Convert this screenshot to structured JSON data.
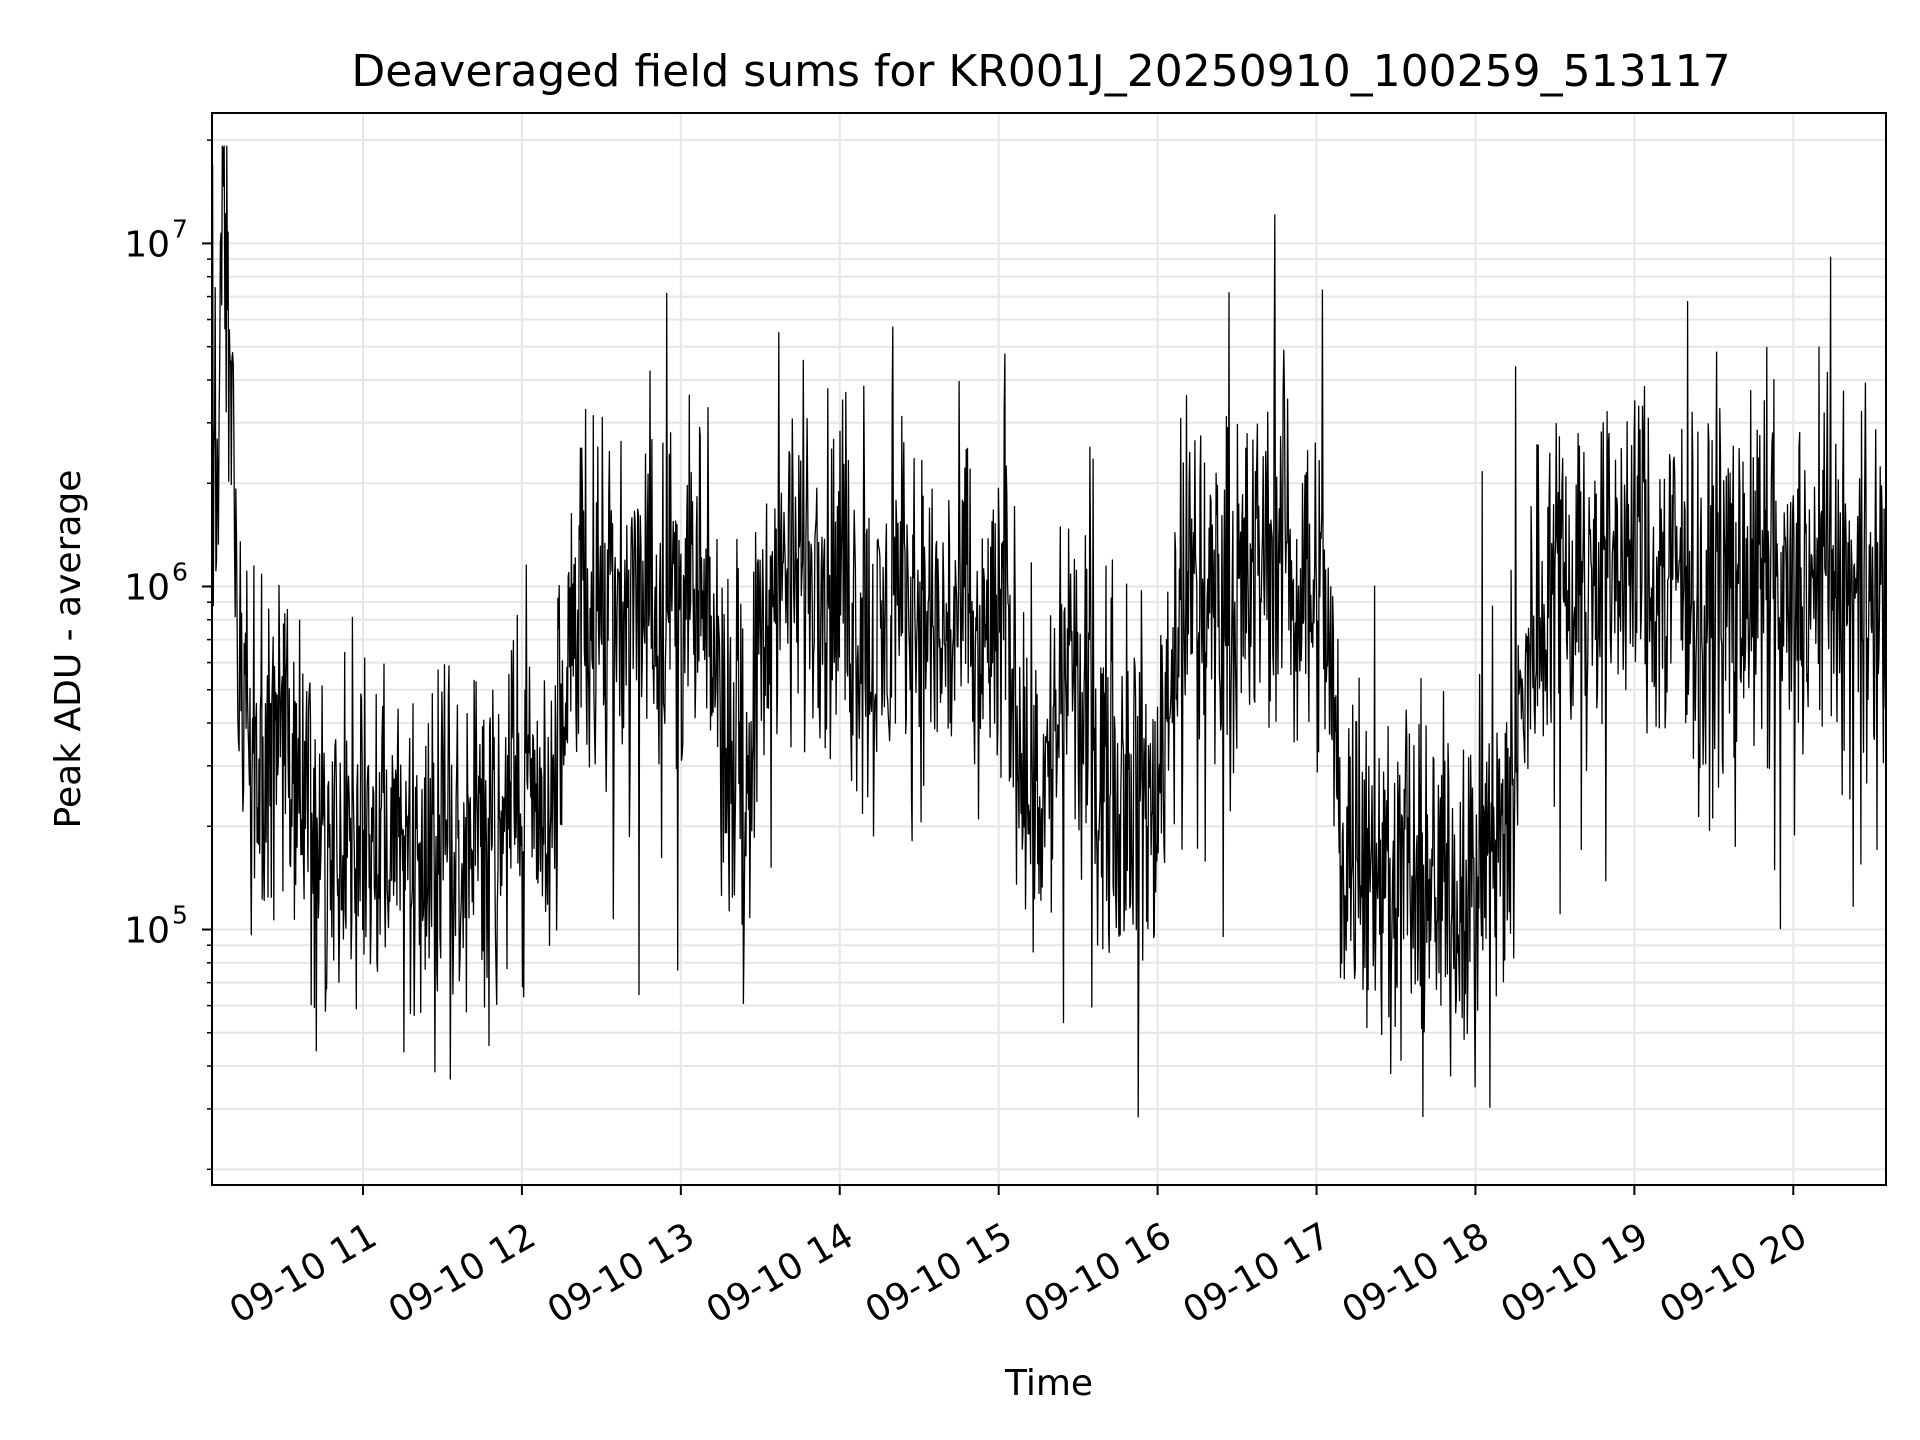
{
  "chart_data": {
    "type": "line",
    "title": "Deaveraged field sums for KR001J_20250910_100259_513117",
    "xlabel": "Time",
    "ylabel": "Peak ADU - average",
    "yscale": "log",
    "ylim": [
      18000,
      24000000
    ],
    "xlim": [
      "2025-09-10 10:03",
      "2025-09-10 20:35"
    ],
    "grid": true,
    "line_color": "#000000",
    "grid_color": "#e6e6e6",
    "x_ticks": [
      {
        "value": "2025-09-10 11:00",
        "label": "09-10 11"
      },
      {
        "value": "2025-09-10 12:00",
        "label": "09-10 12"
      },
      {
        "value": "2025-09-10 13:00",
        "label": "09-10 13"
      },
      {
        "value": "2025-09-10 14:00",
        "label": "09-10 14"
      },
      {
        "value": "2025-09-10 15:00",
        "label": "09-10 15"
      },
      {
        "value": "2025-09-10 16:00",
        "label": "09-10 16"
      },
      {
        "value": "2025-09-10 17:00",
        "label": "09-10 17"
      },
      {
        "value": "2025-09-10 18:00",
        "label": "09-10 18"
      },
      {
        "value": "2025-09-10 19:00",
        "label": "09-10 19"
      },
      {
        "value": "2025-09-10 20:00",
        "label": "09-10 20"
      }
    ],
    "y_ticks": [
      {
        "value": 100000,
        "base": "10",
        "exp": "5"
      },
      {
        "value": 1000000,
        "base": "10",
        "exp": "6"
      },
      {
        "value": 10000000,
        "base": "10",
        "exp": "7"
      }
    ],
    "series": [
      {
        "x": [
          "2025-09-10 10:03",
          "2025-09-10 10:07",
          "2025-09-10 10:14",
          "2025-09-10 10:22",
          "2025-09-10 10:30",
          "2025-09-10 10:38",
          "2025-09-10 10:46",
          "2025-09-10 10:54",
          "2025-09-10 11:02",
          "2025-09-10 11:10",
          "2025-09-10 11:18",
          "2025-09-10 11:26",
          "2025-09-10 11:34",
          "2025-09-10 11:42",
          "2025-09-10 11:50",
          "2025-09-10 11:58",
          "2025-09-10 12:06",
          "2025-09-10 12:14",
          "2025-09-10 12:22",
          "2025-09-10 12:30",
          "2025-09-10 12:38",
          "2025-09-10 12:46",
          "2025-09-10 12:54",
          "2025-09-10 13:02",
          "2025-09-10 13:10",
          "2025-09-10 13:18",
          "2025-09-10 13:26",
          "2025-09-10 13:34",
          "2025-09-10 13:42",
          "2025-09-10 13:50",
          "2025-09-10 13:58",
          "2025-09-10 14:06",
          "2025-09-10 14:14",
          "2025-09-10 14:22",
          "2025-09-10 14:30",
          "2025-09-10 14:38",
          "2025-09-10 14:46",
          "2025-09-10 14:54",
          "2025-09-10 15:02",
          "2025-09-10 15:10",
          "2025-09-10 15:18",
          "2025-09-10 15:26",
          "2025-09-10 15:34",
          "2025-09-10 15:42",
          "2025-09-10 15:50",
          "2025-09-10 15:58",
          "2025-09-10 16:06",
          "2025-09-10 16:14",
          "2025-09-10 16:22",
          "2025-09-10 16:30",
          "2025-09-10 16:38",
          "2025-09-10 16:46",
          "2025-09-10 16:54",
          "2025-09-10 17:02",
          "2025-09-10 17:10",
          "2025-09-10 17:18",
          "2025-09-10 17:26",
          "2025-09-10 17:34",
          "2025-09-10 17:42",
          "2025-09-10 17:50",
          "2025-09-10 17:58",
          "2025-09-10 18:06",
          "2025-09-10 18:14",
          "2025-09-10 18:22",
          "2025-09-10 18:30",
          "2025-09-10 18:38",
          "2025-09-10 18:46",
          "2025-09-10 18:54",
          "2025-09-10 19:02",
          "2025-09-10 19:10",
          "2025-09-10 19:18",
          "2025-09-10 19:26",
          "2025-09-10 19:34",
          "2025-09-10 19:42",
          "2025-09-10 19:50",
          "2025-09-10 19:58",
          "2025-09-10 20:06",
          "2025-09-10 20:14",
          "2025-09-10 20:22",
          "2025-09-10 20:30",
          "2025-09-10 20:35"
        ],
        "y": [
          900000,
          17000000,
          350000,
          300000,
          400000,
          170000,
          200000,
          180000,
          220000,
          180000,
          170000,
          190000,
          200000,
          160000,
          220000,
          240000,
          300000,
          250000,
          1100000,
          900000,
          800000,
          850000,
          1000000,
          950000,
          700000,
          400000,
          350000,
          900000,
          1300000,
          1100000,
          1000000,
          800000,
          600000,
          900000,
          850000,
          700000,
          800000,
          650000,
          900000,
          300000,
          250000,
          600000,
          400000,
          260000,
          280000,
          200000,
          700000,
          1100000,
          900000,
          1000000,
          1200000,
          1300000,
          1100000,
          1000000,
          200000,
          150000,
          130000,
          160000,
          120000,
          140000,
          150000,
          180000,
          220000,
          800000,
          1200000,
          1000000,
          1100000,
          1300000,
          1200000,
          1000000,
          1100000,
          900000,
          1000000,
          1050000,
          950000,
          800000,
          900000,
          1000000,
          850000,
          900000,
          600000
        ],
        "envelope_note": ""
      }
    ]
  }
}
